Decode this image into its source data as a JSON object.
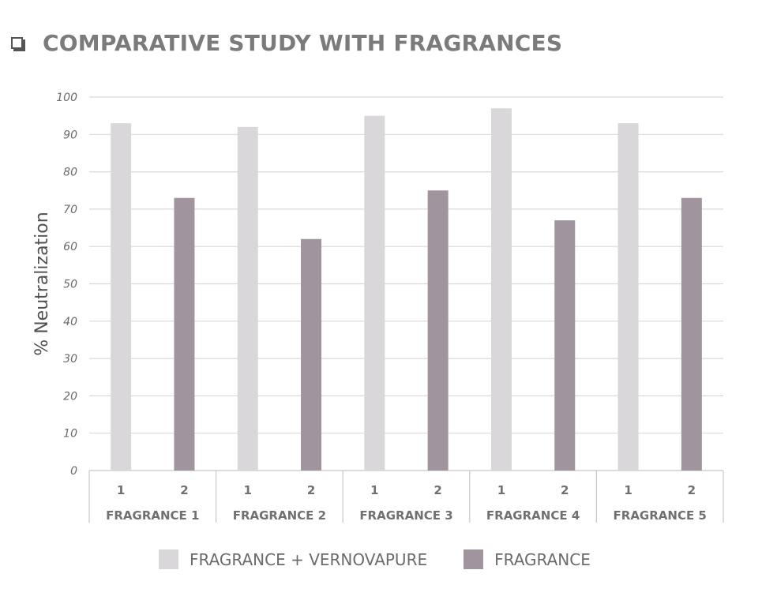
{
  "page_title": "COMPARATIVE STUDY WITH FRAGRANCES",
  "title_icon": "square-checkbox-icon",
  "colors": {
    "series1": "#d9d7da",
    "series2": "#a0959f",
    "grid": "#d9d9d9",
    "axis_line": "#c8c8c8"
  },
  "chart_data": {
    "type": "bar",
    "title": "",
    "xlabel": "",
    "ylabel": "% Neutralization",
    "ylim": [
      0,
      100
    ],
    "yticks": [
      0,
      10,
      20,
      30,
      40,
      50,
      60,
      70,
      80,
      90,
      100
    ],
    "grid": true,
    "legend_position": "bottom",
    "categories": [
      "FRAGRANCE 1",
      "FRAGRANCE 2",
      "FRAGRANCE 3",
      "FRAGRANCE 4",
      "FRAGRANCE 5"
    ],
    "sub_categories": [
      "1",
      "2"
    ],
    "series": [
      {
        "name": "FRAGRANCE + VERNOVAPURE",
        "sub_category": "1",
        "values": [
          93,
          92,
          95,
          97,
          93
        ]
      },
      {
        "name": "FRAGRANCE",
        "sub_category": "2",
        "values": [
          73,
          62,
          75,
          67,
          73
        ]
      }
    ]
  }
}
